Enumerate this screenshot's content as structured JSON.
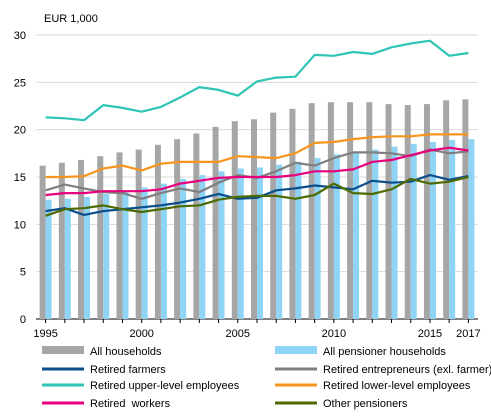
{
  "chart_data": {
    "type": "bar",
    "ylabel": "EUR 1,000",
    "ylim": [
      0,
      30
    ],
    "yticks": [
      0,
      5,
      10,
      15,
      20,
      25,
      30
    ],
    "x": [
      1995,
      1996,
      1997,
      1998,
      1999,
      2000,
      2001,
      2002,
      2003,
      2004,
      2005,
      2006,
      2007,
      2008,
      2009,
      2010,
      2011,
      2012,
      2013,
      2014,
      2015,
      2016,
      2017
    ],
    "xtick_labels": [
      "1995",
      "2000",
      "2005",
      "2010",
      "2015",
      "2017"
    ],
    "grid": "horizontal",
    "legend_position": "bottom",
    "bar_series": [
      {
        "name": "All households",
        "color": "#a6a6a6",
        "values": [
          16.2,
          16.5,
          16.8,
          17.2,
          17.6,
          17.9,
          18.4,
          19.0,
          19.6,
          20.3,
          20.9,
          21.1,
          21.8,
          22.2,
          22.8,
          22.9,
          22.9,
          22.9,
          22.7,
          22.6,
          22.7,
          23.1,
          23.2
        ]
      },
      {
        "name": "All pensioner households",
        "color": "#8fd4f5",
        "values": [
          12.6,
          12.7,
          12.9,
          13.2,
          13.6,
          13.9,
          14.3,
          14.8,
          15.2,
          15.6,
          15.9,
          16.0,
          16.3,
          16.6,
          17.0,
          17.4,
          17.6,
          17.9,
          18.2,
          18.5,
          18.7,
          18.9,
          19.0
        ]
      }
    ],
    "line_series": [
      {
        "name": "Retired farmers",
        "color": "#0a4f8c",
        "values": [
          11.4,
          11.7,
          11.0,
          11.4,
          11.6,
          11.8,
          12.0,
          12.3,
          12.7,
          13.2,
          12.7,
          12.8,
          13.6,
          13.8,
          14.1,
          13.9,
          13.7,
          14.6,
          14.4,
          14.5,
          15.2,
          14.7,
          15.1
        ]
      },
      {
        "name": "Retired entrepreneurs (exl. farmer)",
        "color": "#7f7f7f",
        "values": [
          13.6,
          14.2,
          13.8,
          13.4,
          13.3,
          12.7,
          13.3,
          13.8,
          13.4,
          14.4,
          15.2,
          14.9,
          15.6,
          16.5,
          16.2,
          17.0,
          17.6,
          17.6,
          17.5,
          17.2,
          17.9,
          17.5,
          17.7
        ]
      },
      {
        "name": "Retired upper-level employees",
        "color": "#2ec4b6",
        "values": [
          21.3,
          21.2,
          21.0,
          22.6,
          22.3,
          21.9,
          22.4,
          23.4,
          24.5,
          24.2,
          23.6,
          25.1,
          25.5,
          25.6,
          27.9,
          27.8,
          28.2,
          28.0,
          28.7,
          29.1,
          29.4,
          27.8,
          28.1
        ]
      },
      {
        "name": "Retired lower-level employees",
        "color": "#f7941d",
        "values": [
          15.0,
          15.0,
          15.1,
          15.9,
          16.2,
          15.7,
          16.4,
          16.6,
          16.6,
          16.6,
          17.2,
          17.1,
          17.0,
          17.5,
          18.6,
          18.7,
          19.0,
          19.2,
          19.3,
          19.3,
          19.5,
          19.5,
          19.5
        ]
      },
      {
        "name": "Retired  workers",
        "color": "#e6007e",
        "values": [
          13.1,
          13.3,
          13.3,
          13.5,
          13.5,
          13.5,
          13.7,
          14.3,
          14.6,
          14.9,
          15.0,
          15.0,
          15.0,
          15.2,
          15.6,
          15.6,
          15.8,
          16.6,
          16.8,
          17.3,
          17.8,
          18.1,
          17.8
        ]
      },
      {
        "name": "Other pensioners",
        "color": "#4d6b00",
        "values": [
          10.9,
          11.6,
          11.7,
          12.0,
          11.6,
          11.3,
          11.6,
          11.9,
          12.0,
          12.6,
          12.9,
          13.0,
          13.0,
          12.7,
          13.1,
          14.3,
          13.3,
          13.2,
          13.7,
          14.8,
          14.3,
          14.5,
          15.0
        ]
      }
    ],
    "legend": [
      [
        "All households",
        "All pensioner households"
      ],
      [
        "Retired farmers",
        "Retired entrepreneurs (exl. farmer)"
      ],
      [
        "Retired upper-level employees",
        "Retired lower-level employees"
      ],
      [
        "Retired  workers",
        "Other pensioners"
      ]
    ]
  }
}
